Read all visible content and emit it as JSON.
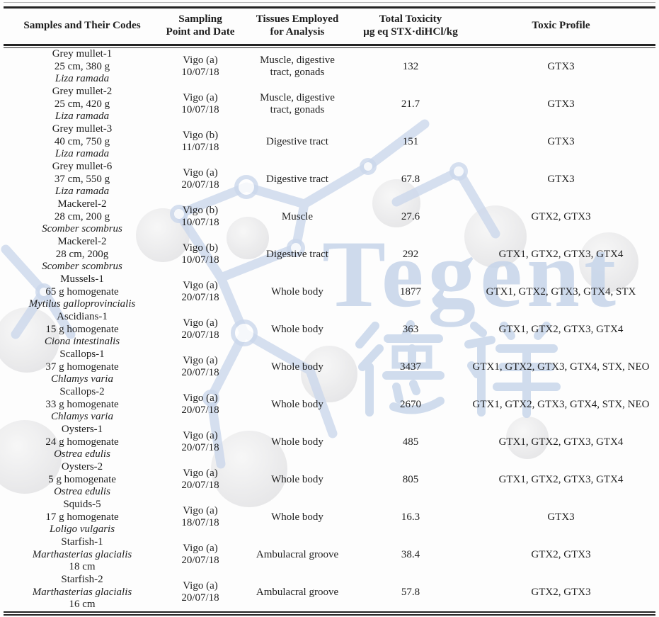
{
  "watermark": {
    "brand_text": "Tegent",
    "cjk_text": "德祥",
    "accent_color": "#c8d6ea"
  },
  "table": {
    "columns": [
      {
        "lines": [
          "Samples and Their Codes"
        ]
      },
      {
        "lines": [
          "Sampling",
          "Point and Date"
        ]
      },
      {
        "lines": [
          "Tissues Employed",
          "for Analysis"
        ]
      },
      {
        "lines": [
          "Total Toxicity",
          "µg eq STX·diHCl/kg"
        ]
      },
      {
        "lines": [
          "Toxic Profile"
        ]
      }
    ],
    "rows": [
      {
        "sample_lines": [
          {
            "text": "Grey mullet-1"
          },
          {
            "text": "25 cm, 380 g"
          },
          {
            "text": "Liza ramada",
            "italic": true
          }
        ],
        "sampling": [
          "Vigo (a)",
          "10/07/18"
        ],
        "tissues": "Muscle, digestive tract, gonads",
        "toxicity": "132",
        "profile": "GTX3"
      },
      {
        "sample_lines": [
          {
            "text": "Grey mullet-2"
          },
          {
            "text": "25 cm, 420 g"
          },
          {
            "text": "Liza ramada",
            "italic": true
          }
        ],
        "sampling": [
          "Vigo (a)",
          "10/07/18"
        ],
        "tissues": "Muscle, digestive tract, gonads",
        "toxicity": "21.7",
        "profile": "GTX3"
      },
      {
        "sample_lines": [
          {
            "text": "Grey mullet-3"
          },
          {
            "text": "40 cm, 750 g"
          },
          {
            "text": "Liza ramada",
            "italic": true
          }
        ],
        "sampling": [
          "Vigo (b)",
          "11/07/18"
        ],
        "tissues": "Digestive tract",
        "toxicity": "151",
        "profile": "GTX3"
      },
      {
        "sample_lines": [
          {
            "text": "Grey mullet-6"
          },
          {
            "text": "37 cm, 550 g"
          },
          {
            "text": "Liza ramada",
            "italic": true
          }
        ],
        "sampling": [
          "Vigo (a)",
          "20/07/18"
        ],
        "tissues": "Digestive tract",
        "toxicity": "67.8",
        "profile": "GTX3"
      },
      {
        "sample_lines": [
          {
            "text": "Mackerel-2"
          },
          {
            "text": "28 cm, 200 g"
          },
          {
            "text": "Scomber scombrus",
            "italic": true
          }
        ],
        "sampling": [
          "Vigo (b)",
          "10/07/18"
        ],
        "tissues": "Muscle",
        "toxicity": "27.6",
        "profile": "GTX2, GTX3"
      },
      {
        "sample_lines": [
          {
            "text": "Mackerel-2"
          },
          {
            "text": "28 cm, 200g"
          },
          {
            "text": "Scomber scombrus",
            "italic": true
          }
        ],
        "sampling": [
          "Vigo (b)",
          "10/07/18"
        ],
        "tissues": "Digestive tract",
        "toxicity": "292",
        "profile": "GTX1, GTX2, GTX3, GTX4"
      },
      {
        "sample_lines": [
          {
            "text": "Mussels-1"
          },
          {
            "text": "65 g homogenate"
          },
          {
            "text": "Mytilus galloprovincialis",
            "italic": true
          }
        ],
        "sampling": [
          "Vigo (a)",
          "20/07/18"
        ],
        "tissues": "Whole body",
        "toxicity": "1877",
        "profile": "GTX1, GTX2, GTX3, GTX4, STX"
      },
      {
        "sample_lines": [
          {
            "text": "Ascidians-1"
          },
          {
            "text": "15 g homogenate"
          },
          {
            "text": "Ciona intestinalis",
            "italic": true
          }
        ],
        "sampling": [
          "Vigo (a)",
          "20/07/18"
        ],
        "tissues": "Whole body",
        "toxicity": "363",
        "profile": "GTX1, GTX2, GTX3, GTX4"
      },
      {
        "sample_lines": [
          {
            "text": "Scallops-1"
          },
          {
            "text": "37 g homogenate"
          },
          {
            "text": "Chlamys varia",
            "italic": true
          }
        ],
        "sampling": [
          "Vigo (a)",
          "20/07/18"
        ],
        "tissues": "Whole body",
        "toxicity": "3437",
        "profile": "GTX1, GTX2, GTX3, GTX4, STX, NEO"
      },
      {
        "sample_lines": [
          {
            "text": "Scallops-2"
          },
          {
            "text": "33 g homogenate"
          },
          {
            "text": "Chlamys varia",
            "italic": true
          }
        ],
        "sampling": [
          "Vigo (a)",
          "20/07/18"
        ],
        "tissues": "Whole body",
        "toxicity": "2670",
        "profile": "GTX1, GTX2, GTX3, GTX4, STX, NEO"
      },
      {
        "sample_lines": [
          {
            "text": "Oysters-1"
          },
          {
            "text": "24 g homogenate"
          },
          {
            "text": "Ostrea edulis",
            "italic": true
          }
        ],
        "sampling": [
          "Vigo (a)",
          "20/07/18"
        ],
        "tissues": "Whole body",
        "toxicity": "485",
        "profile": "GTX1, GTX2, GTX3, GTX4"
      },
      {
        "sample_lines": [
          {
            "text": "Oysters-2"
          },
          {
            "text": "5 g homogenate"
          },
          {
            "text": "Ostrea edulis",
            "italic": true
          }
        ],
        "sampling": [
          "Vigo (a)",
          "20/07/18"
        ],
        "tissues": "Whole body",
        "toxicity": "805",
        "profile": "GTX1, GTX2, GTX3, GTX4"
      },
      {
        "sample_lines": [
          {
            "text": "Squids-5"
          },
          {
            "text": "17 g homogenate"
          },
          {
            "text": "Loligo vulgaris",
            "italic": true
          }
        ],
        "sampling": [
          "Vigo (a)",
          "18/07/18"
        ],
        "tissues": "Whole body",
        "toxicity": "16.3",
        "profile": "GTX3"
      },
      {
        "sample_lines": [
          {
            "text": "Starfish-1"
          },
          {
            "text": "Marthasterias glacialis",
            "italic": true
          },
          {
            "text": "18 cm"
          }
        ],
        "sampling": [
          "Vigo (a)",
          "20/07/18"
        ],
        "tissues": "Ambulacral groove",
        "toxicity": "38.4",
        "profile": "GTX2, GTX3"
      },
      {
        "sample_lines": [
          {
            "text": "Starfish-2"
          },
          {
            "text": "Marthasterias glacialis",
            "italic": true
          },
          {
            "text": "16 cm"
          }
        ],
        "sampling": [
          "Vigo (a)",
          "20/07/18"
        ],
        "tissues": "Ambulacral groove",
        "toxicity": "57.8",
        "profile": "GTX2, GTX3"
      }
    ]
  }
}
